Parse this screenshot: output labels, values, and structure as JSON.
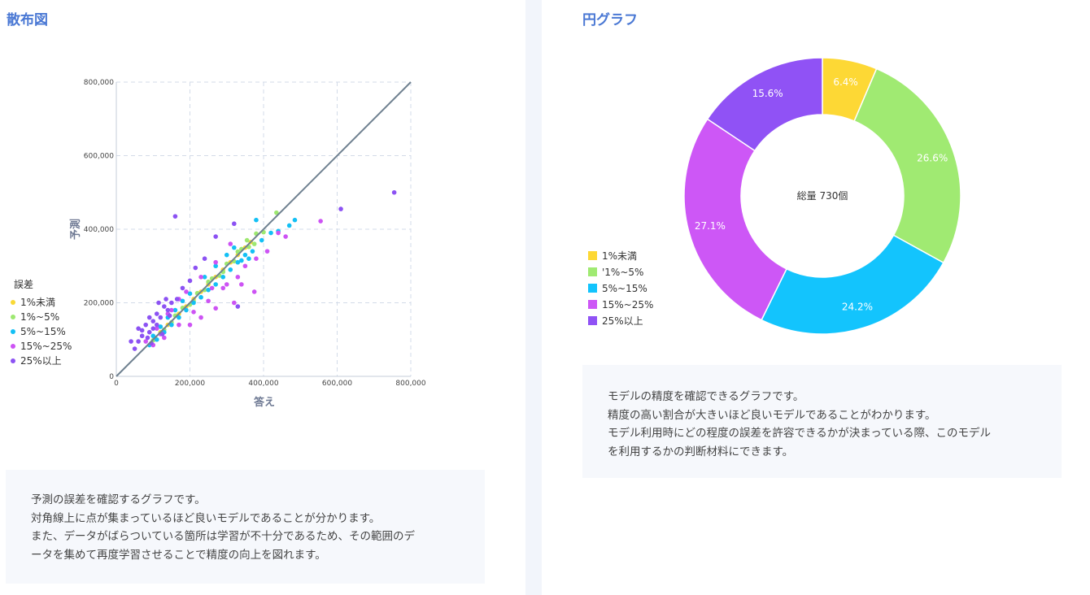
{
  "left_panel": {
    "title": "散布図",
    "description": [
      "予測の誤差を確認するグラフです。",
      "対角線上に点が集まっているほど良いモデルであることが分かります。",
      "また、データがばらついている箇所は学習が不十分であるため、その範囲のデ",
      "ータを集めて再度学習させることで精度の向上を図れます。"
    ]
  },
  "right_panel": {
    "title": "円グラフ",
    "description": [
      "モデルの精度を確認できるグラフです。",
      "精度の高い割合が大きいほど良いモデルであることがわかります。",
      "モデル利用時にどの程度の誤差を許容できるかが決まっている際、このモデル",
      "を利用するかの判断材料にできます。"
    ]
  },
  "chart_data": [
    {
      "type": "scatter",
      "xlabel": "答え",
      "ylabel": "予測",
      "xlim": [
        0,
        800000
      ],
      "ylim": [
        0,
        800000
      ],
      "x_ticks": [
        "0",
        "200,000",
        "400,000",
        "600,000",
        "800,000"
      ],
      "y_ticks": [
        "0",
        "200,000",
        "400,000",
        "600,000",
        "800,000"
      ],
      "grid": true,
      "diagonal_line": true,
      "legend": {
        "title": "誤差",
        "position": "left",
        "entries": [
          "1%未満",
          "1%~5%",
          "5%~15%",
          "15%~25%",
          "25%以上"
        ]
      },
      "series": [
        {
          "name": "1%未満",
          "color": "#f9d936",
          "points": [
            [
              170000,
              170000
            ],
            [
              190000,
              190000
            ],
            [
              210000,
              210000
            ],
            [
              230000,
              230000
            ],
            [
              250000,
              250000
            ],
            [
              270000,
              270000
            ],
            [
              290000,
              290000
            ],
            [
              310000,
              310000
            ],
            [
              330000,
              330000
            ],
            [
              350000,
              350000
            ],
            [
              365000,
              365000
            ],
            [
              140000,
              140000
            ],
            [
              120000,
              120000
            ],
            [
              105000,
              105000
            ]
          ]
        },
        {
          "name": "1%~5%",
          "color": "#9de870",
          "points": [
            [
              100000,
              98000
            ],
            [
              120000,
              116000
            ],
            [
              150000,
              147000
            ],
            [
              180000,
              186000
            ],
            [
              200000,
              195000
            ],
            [
              220000,
              226000
            ],
            [
              240000,
              235000
            ],
            [
              260000,
              266000
            ],
            [
              280000,
              274000
            ],
            [
              300000,
              306000
            ],
            [
              320000,
              313000
            ],
            [
              340000,
              346000
            ],
            [
              360000,
              352000
            ],
            [
              380000,
              388000
            ],
            [
              400000,
              392000
            ],
            [
              435000,
              445000
            ],
            [
              355000,
              370000
            ],
            [
              375000,
              360000
            ],
            [
              160000,
              165000
            ],
            [
              130000,
              127000
            ],
            [
              250000,
              257000
            ],
            [
              290000,
              284000
            ],
            [
              330000,
              339000
            ],
            [
              210000,
              204000
            ]
          ]
        },
        {
          "name": "5%~15%",
          "color": "#13c0f5",
          "points": [
            [
              90000,
              85000
            ],
            [
              110000,
              100000
            ],
            [
              130000,
              120000
            ],
            [
              150000,
              140000
            ],
            [
              170000,
              160000
            ],
            [
              190000,
              180000
            ],
            [
              210000,
              200000
            ],
            [
              230000,
              215000
            ],
            [
              250000,
              235000
            ],
            [
              270000,
              250000
            ],
            [
              290000,
              270000
            ],
            [
              310000,
              290000
            ],
            [
              330000,
              310000
            ],
            [
              350000,
              330000
            ],
            [
              370000,
              340000
            ],
            [
              395000,
              370000
            ],
            [
              420000,
              390000
            ],
            [
              440000,
              395000
            ],
            [
              470000,
              410000
            ],
            [
              485000,
              425000
            ],
            [
              380000,
              425000
            ],
            [
              300000,
              330000
            ],
            [
              320000,
              350000
            ],
            [
              270000,
              300000
            ],
            [
              240000,
              270000
            ],
            [
              200000,
              225000
            ],
            [
              180000,
              205000
            ],
            [
              160000,
              180000
            ],
            [
              140000,
              160000
            ],
            [
              120000,
              135000
            ],
            [
              100000,
              110000
            ],
            [
              340000,
              315000
            ],
            [
              360000,
              320000
            ]
          ]
        },
        {
          "name": "15%~25%",
          "color": "#cd53f4",
          "points": [
            [
              80000,
              95000
            ],
            [
              100000,
              85000
            ],
            [
              110000,
              130000
            ],
            [
              130000,
              105000
            ],
            [
              150000,
              180000
            ],
            [
              170000,
              140000
            ],
            [
              190000,
              230000
            ],
            [
              210000,
              175000
            ],
            [
              230000,
              270000
            ],
            [
              250000,
              205000
            ],
            [
              270000,
              310000
            ],
            [
              290000,
              240000
            ],
            [
              310000,
              360000
            ],
            [
              330000,
              270000
            ],
            [
              350000,
              300000
            ],
            [
              380000,
              320000
            ],
            [
              410000,
              340000
            ],
            [
              440000,
              390000
            ],
            [
              460000,
              380000
            ],
            [
              555000,
              422000
            ],
            [
              320000,
              200000
            ],
            [
              270000,
              185000
            ],
            [
              230000,
              160000
            ],
            [
              200000,
              140000
            ],
            [
              260000,
              240000
            ],
            [
              300000,
              250000
            ],
            [
              170000,
              210000
            ],
            [
              140000,
              170000
            ],
            [
              120000,
              115000
            ],
            [
              340000,
              250000
            ],
            [
              375000,
              230000
            ]
          ]
        },
        {
          "name": "25%以上",
          "color": "#8c52f3",
          "points": [
            [
              40000,
              95000
            ],
            [
              50000,
              75000
            ],
            [
              60000,
              130000
            ],
            [
              70000,
              110000
            ],
            [
              80000,
              140000
            ],
            [
              90000,
              120000
            ],
            [
              100000,
              150000
            ],
            [
              110000,
              170000
            ],
            [
              120000,
              160000
            ],
            [
              130000,
              190000
            ],
            [
              140000,
              180000
            ],
            [
              150000,
              200000
            ],
            [
              160000,
              435000
            ],
            [
              165000,
              210000
            ],
            [
              180000,
              240000
            ],
            [
              200000,
              260000
            ],
            [
              215000,
              295000
            ],
            [
              240000,
              320000
            ],
            [
              270000,
              380000
            ],
            [
              320000,
              415000
            ],
            [
              330000,
              190000
            ],
            [
              610000,
              455000
            ],
            [
              755000,
              500000
            ],
            [
              90000,
              160000
            ],
            [
              70000,
              125000
            ],
            [
              110000,
              140000
            ],
            [
              125000,
              115000
            ],
            [
              135000,
              210000
            ],
            [
              60000,
              95000
            ],
            [
              85000,
              105000
            ],
            [
              100000,
              130000
            ],
            [
              145000,
              165000
            ],
            [
              115000,
              200000
            ],
            [
              95000,
              90000
            ]
          ]
        }
      ]
    },
    {
      "type": "pie",
      "donut": true,
      "center_text": "総量 730個",
      "legend": {
        "position": "left",
        "entries": [
          "1%未満",
          "'1%~5%",
          "5%~15%",
          "15%~25%",
          "25%以上"
        ]
      },
      "slices": [
        {
          "label": "1%未満",
          "value": 6.4,
          "display": "6.4%",
          "color": "#fdd835"
        },
        {
          "label": "'1%~5%",
          "value": 26.6,
          "display": "26.6%",
          "color": "#a0ea72"
        },
        {
          "label": "5%~15%",
          "value": 24.2,
          "display": "24.2%",
          "color": "#13c4fd"
        },
        {
          "label": "15%~25%",
          "value": 27.1,
          "display": "27.1%",
          "color": "#cd57f6"
        },
        {
          "label": "25%以上",
          "value": 15.6,
          "display": "15.6%",
          "color": "#9052f5"
        }
      ]
    }
  ]
}
